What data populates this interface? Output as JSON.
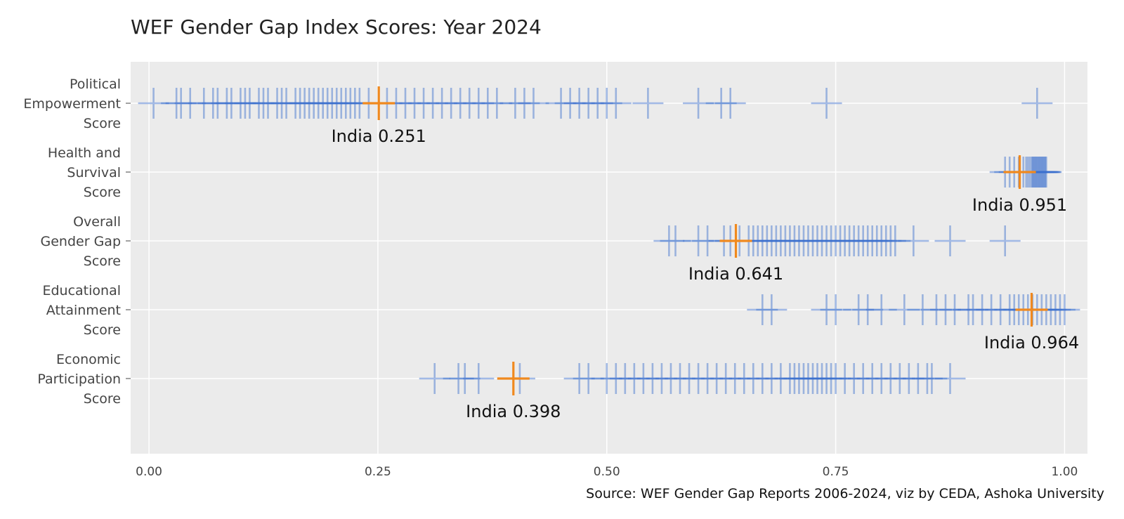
{
  "chart_data": {
    "type": "scatter",
    "title": "WEF Gender Gap Index Scores: Year 2024",
    "source": "Source: WEF Gender Gap Reports 2006-2024, viz by CEDA, Ashoka University",
    "xlim": [
      -0.02,
      1.025
    ],
    "x_ticks": [
      {
        "value": 0.0,
        "label": "0.00"
      },
      {
        "value": 0.25,
        "label": "0.25"
      },
      {
        "value": 0.5,
        "label": "0.50"
      },
      {
        "value": 0.75,
        "label": "0.75"
      },
      {
        "value": 1.0,
        "label": "1.00"
      }
    ],
    "grid": true,
    "marker": "cross",
    "colors": {
      "countries": "#3a6fce",
      "highlight": "#f0891e",
      "background": "#ebebeb",
      "grid": "#ffffff"
    },
    "categories": [
      {
        "label_lines": [
          "Political",
          "Empowerment",
          "Score"
        ],
        "highlight": {
          "label": "India 0.251",
          "value": 0.251
        },
        "values": [
          0.005,
          0.03,
          0.035,
          0.045,
          0.06,
          0.07,
          0.075,
          0.085,
          0.09,
          0.1,
          0.105,
          0.11,
          0.12,
          0.125,
          0.13,
          0.14,
          0.145,
          0.15,
          0.16,
          0.165,
          0.17,
          0.175,
          0.18,
          0.185,
          0.19,
          0.195,
          0.2,
          0.205,
          0.21,
          0.215,
          0.22,
          0.225,
          0.23,
          0.24,
          0.26,
          0.27,
          0.28,
          0.29,
          0.3,
          0.31,
          0.32,
          0.33,
          0.34,
          0.35,
          0.36,
          0.37,
          0.38,
          0.4,
          0.41,
          0.42,
          0.45,
          0.46,
          0.47,
          0.48,
          0.49,
          0.5,
          0.51,
          0.545,
          0.6,
          0.625,
          0.635,
          0.74,
          0.97
        ]
      },
      {
        "label_lines": [
          "Health and",
          "Survival",
          "Score"
        ],
        "highlight": {
          "label": "India 0.951",
          "value": 0.951
        },
        "values": [
          0.935,
          0.94,
          0.945,
          0.95,
          0.955,
          0.958,
          0.96,
          0.962,
          0.964,
          0.965,
          0.966,
          0.967,
          0.968,
          0.969,
          0.97,
          0.971,
          0.972,
          0.973,
          0.974,
          0.975,
          0.976,
          0.977,
          0.978,
          0.979,
          0.98
        ]
      },
      {
        "label_lines": [
          "Overall",
          "Gender Gap",
          "Score"
        ],
        "highlight": {
          "label": "India 0.641",
          "value": 0.641
        },
        "values": [
          0.568,
          0.575,
          0.6,
          0.61,
          0.628,
          0.635,
          0.645,
          0.655,
          0.66,
          0.665,
          0.67,
          0.675,
          0.68,
          0.685,
          0.69,
          0.695,
          0.7,
          0.705,
          0.71,
          0.715,
          0.72,
          0.725,
          0.73,
          0.735,
          0.74,
          0.745,
          0.75,
          0.755,
          0.76,
          0.765,
          0.77,
          0.775,
          0.78,
          0.785,
          0.79,
          0.795,
          0.8,
          0.805,
          0.81,
          0.815,
          0.835,
          0.875,
          0.935
        ]
      },
      {
        "label_lines": [
          "Educational",
          "Attainment",
          "Score"
        ],
        "highlight": {
          "label": "India 0.964",
          "value": 0.964
        },
        "values": [
          0.67,
          0.68,
          0.74,
          0.75,
          0.775,
          0.785,
          0.8,
          0.825,
          0.845,
          0.86,
          0.87,
          0.88,
          0.895,
          0.9,
          0.91,
          0.92,
          0.93,
          0.94,
          0.945,
          0.95,
          0.955,
          0.96,
          0.965,
          0.97,
          0.975,
          0.98,
          0.985,
          0.99,
          0.995,
          1.0
        ]
      },
      {
        "label_lines": [
          "Economic",
          "Participation",
          "Score"
        ],
        "highlight": {
          "label": "India 0.398",
          "value": 0.398
        },
        "values": [
          0.312,
          0.338,
          0.345,
          0.36,
          0.405,
          0.47,
          0.48,
          0.5,
          0.51,
          0.52,
          0.53,
          0.54,
          0.55,
          0.56,
          0.57,
          0.58,
          0.59,
          0.6,
          0.61,
          0.62,
          0.63,
          0.64,
          0.65,
          0.66,
          0.67,
          0.68,
          0.69,
          0.7,
          0.705,
          0.71,
          0.715,
          0.72,
          0.725,
          0.73,
          0.735,
          0.74,
          0.745,
          0.75,
          0.76,
          0.77,
          0.78,
          0.79,
          0.8,
          0.81,
          0.82,
          0.83,
          0.84,
          0.85,
          0.855,
          0.875
        ]
      }
    ]
  }
}
